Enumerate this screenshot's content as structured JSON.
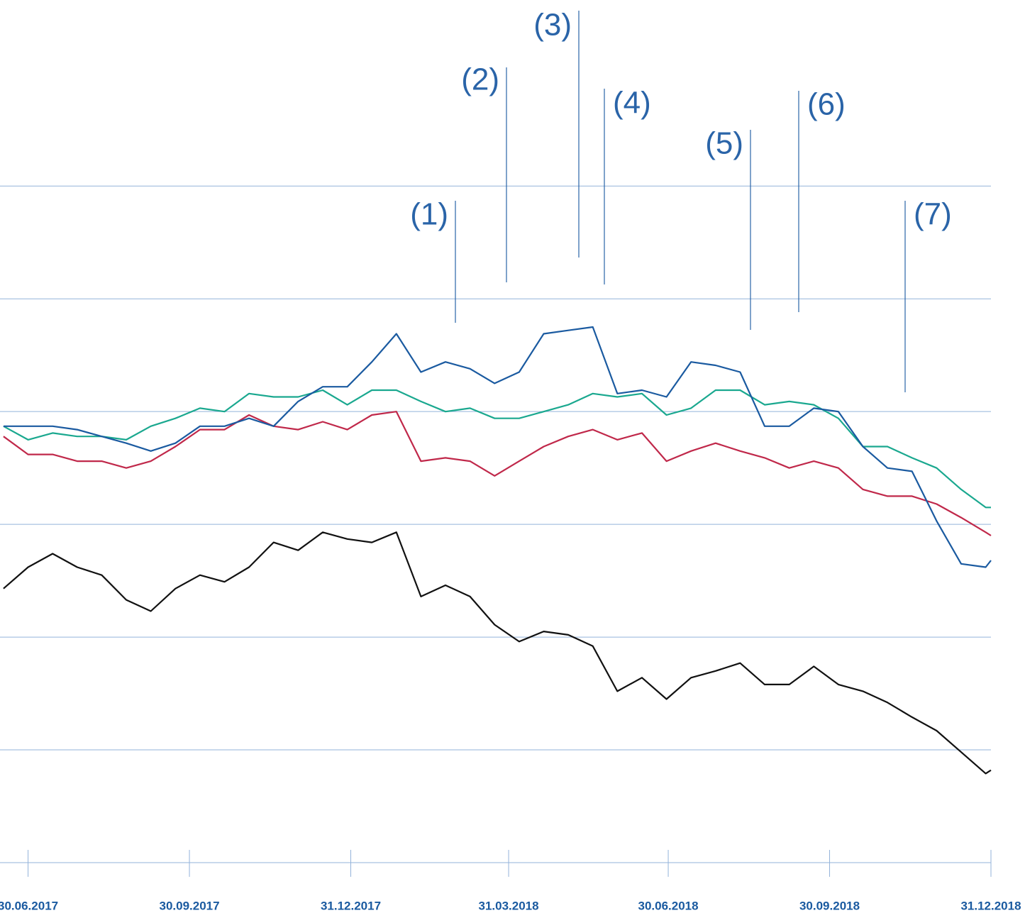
{
  "chart_data": {
    "type": "line",
    "x": [
      "2017-06-16",
      "2017-06-30",
      "2017-07-14",
      "2017-07-28",
      "2017-08-11",
      "2017-08-25",
      "2017-09-08",
      "2017-09-22",
      "2017-10-06",
      "2017-10-20",
      "2017-11-03",
      "2017-11-17",
      "2017-12-01",
      "2017-12-15",
      "2017-12-29",
      "2018-01-12",
      "2018-01-26",
      "2018-02-09",
      "2018-02-23",
      "2018-03-09",
      "2018-03-23",
      "2018-04-06",
      "2018-04-20",
      "2018-05-04",
      "2018-05-18",
      "2018-06-01",
      "2018-06-15",
      "2018-06-29",
      "2018-07-13",
      "2018-07-27",
      "2018-08-10",
      "2018-08-24",
      "2018-09-07",
      "2018-09-21",
      "2018-10-05",
      "2018-10-19",
      "2018-11-02",
      "2018-11-16",
      "2018-11-30",
      "2018-12-14",
      "2018-12-28",
      "2018-12-31"
    ],
    "series": [
      {
        "color": "#111111",
        "values": [
          24.3,
          26.2,
          27.4,
          26.2,
          25.5,
          23.3,
          22.3,
          24.3,
          25.5,
          24.9,
          26.2,
          28.4,
          27.7,
          29.3,
          28.7,
          28.4,
          29.3,
          23.6,
          24.6,
          23.6,
          21.1,
          19.6,
          20.5,
          20.2,
          19.2,
          15.2,
          16.4,
          14.5,
          16.4,
          17.0,
          17.7,
          15.8,
          15.8,
          17.4,
          15.8,
          15.2,
          14.2,
          12.9,
          11.7,
          9.8,
          7.9,
          8.2
        ]
      },
      {
        "color": "#c0284a",
        "values": [
          37.8,
          36.2,
          36.2,
          35.6,
          35.6,
          35.0,
          35.6,
          36.9,
          38.4,
          38.4,
          39.7,
          38.7,
          38.4,
          39.1,
          38.4,
          39.7,
          40.0,
          35.6,
          35.9,
          35.6,
          34.3,
          35.6,
          36.9,
          37.8,
          38.4,
          37.5,
          38.1,
          35.6,
          36.5,
          37.2,
          36.5,
          35.9,
          35.0,
          35.6,
          35.0,
          33.1,
          32.5,
          32.5,
          31.8,
          30.6,
          29.3,
          29.0
        ]
      },
      {
        "color": "#1aa88f",
        "values": [
          38.7,
          37.5,
          38.1,
          37.8,
          37.8,
          37.5,
          38.7,
          39.4,
          40.3,
          40.0,
          41.6,
          41.3,
          41.3,
          41.9,
          40.6,
          41.9,
          41.9,
          40.9,
          40.0,
          40.3,
          39.4,
          39.4,
          40.0,
          40.6,
          41.6,
          41.3,
          41.6,
          39.7,
          40.3,
          41.9,
          41.9,
          40.6,
          40.9,
          40.6,
          39.4,
          36.9,
          36.9,
          35.9,
          35.0,
          33.1,
          31.5,
          31.5
        ]
      },
      {
        "color": "#1a5aa0",
        "values": [
          38.7,
          38.7,
          38.7,
          38.4,
          37.8,
          37.2,
          36.5,
          37.2,
          38.7,
          38.7,
          39.4,
          38.7,
          40.9,
          42.2,
          42.2,
          44.4,
          46.9,
          43.5,
          44.4,
          43.8,
          42.5,
          43.5,
          46.9,
          47.2,
          47.5,
          41.6,
          41.9,
          41.3,
          44.4,
          44.1,
          43.5,
          38.7,
          38.7,
          40.3,
          40.0,
          36.9,
          35.0,
          34.7,
          30.3,
          26.5,
          26.2,
          26.8
        ]
      }
    ],
    "xlim": [
      "2017-06-14",
      "2018-12-31"
    ],
    "xticks": [
      {
        "value": "2017-06-30",
        "label": "30.06.2017"
      },
      {
        "value": "2017-09-30",
        "label": "30.09.2017"
      },
      {
        "value": "2017-12-31",
        "label": "31.12.2017"
      },
      {
        "value": "2018-03-31",
        "label": "31.03.2018"
      },
      {
        "value": "2018-06-30",
        "label": "30.06.2018"
      },
      {
        "value": "2018-09-30",
        "label": "30.09.2018"
      },
      {
        "value": "2018-12-31",
        "label": "31.12.2018"
      }
    ],
    "ylim": [
      0,
      76.5
    ],
    "ygrid": [
      10,
      20,
      30,
      40,
      50,
      60
    ],
    "grid": true,
    "annotations": [
      "(1)",
      "(2)",
      "(3)",
      "(4)",
      "(5)",
      "(6)",
      "(7)"
    ]
  }
}
